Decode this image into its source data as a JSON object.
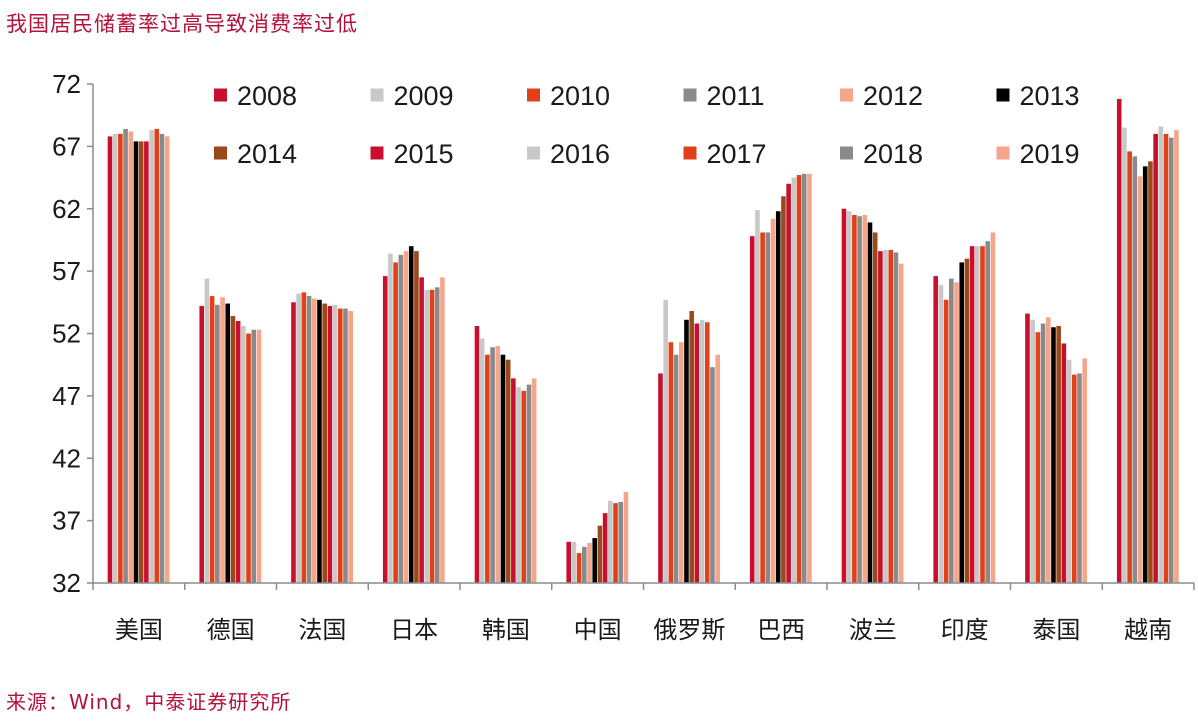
{
  "header": {
    "title": "我国居民储蓄率过高导致消费率过低"
  },
  "footer": {
    "source": "来源：Wind，中泰证券研究所"
  },
  "chart_data": {
    "type": "bar",
    "title": "",
    "xlabel": "",
    "ylabel": "",
    "ylim": [
      32,
      72
    ],
    "yticks": [
      32,
      37,
      42,
      47,
      52,
      57,
      62,
      67,
      72
    ],
    "grid": false,
    "legend_position": "top",
    "categories": [
      "美国",
      "德国",
      "法国",
      "日本",
      "韩国",
      "中国",
      "俄罗斯",
      "巴西",
      "波兰",
      "印度",
      "泰国",
      "越南"
    ],
    "series": [
      {
        "name": "2008",
        "color": "#c8102e",
        "values": [
          67.8,
          54.2,
          54.5,
          56.6,
          52.6,
          35.3,
          48.8,
          59.8,
          62.0,
          56.6,
          53.6,
          70.8
        ]
      },
      {
        "name": "2009",
        "color": "#c8c8c8",
        "values": [
          68.0,
          56.4,
          55.2,
          58.4,
          51.6,
          35.3,
          54.7,
          61.9,
          61.8,
          55.9,
          53.1,
          68.5
        ]
      },
      {
        "name": "2010",
        "color": "#e0401a",
        "values": [
          68.0,
          55.0,
          55.3,
          57.7,
          50.3,
          34.4,
          51.3,
          60.1,
          61.5,
          54.7,
          52.1,
          66.6
        ]
      },
      {
        "name": "2011",
        "color": "#8a8a8a",
        "values": [
          68.4,
          54.3,
          55.0,
          58.3,
          50.9,
          34.9,
          50.3,
          60.1,
          61.4,
          56.4,
          52.8,
          66.2
        ]
      },
      {
        "name": "2012",
        "color": "#f4a58a",
        "values": [
          68.2,
          54.9,
          54.8,
          58.6,
          51.0,
          35.2,
          51.3,
          61.2,
          61.5,
          56.1,
          53.3,
          64.6
        ]
      },
      {
        "name": "2013",
        "color": "#000000",
        "values": [
          67.4,
          54.4,
          54.7,
          59.0,
          50.3,
          35.6,
          53.1,
          61.8,
          60.9,
          57.7,
          52.5,
          65.4
        ]
      },
      {
        "name": "2014",
        "color": "#9a4a1a",
        "values": [
          67.4,
          53.4,
          54.4,
          58.6,
          49.9,
          36.6,
          53.8,
          63.0,
          60.1,
          58.0,
          52.6,
          65.8
        ]
      },
      {
        "name": "2015",
        "color": "#c8102e",
        "values": [
          67.4,
          53.0,
          54.2,
          56.5,
          48.4,
          37.6,
          52.8,
          64.0,
          58.6,
          59.0,
          51.2,
          68.0
        ]
      },
      {
        "name": "2016",
        "color": "#c8c8c8",
        "values": [
          68.3,
          52.6,
          54.3,
          55.5,
          47.7,
          38.6,
          53.1,
          64.5,
          58.7,
          59.0,
          49.9,
          68.6
        ]
      },
      {
        "name": "2017",
        "color": "#e0401a",
        "values": [
          68.4,
          52.0,
          54.0,
          55.5,
          47.4,
          38.4,
          52.9,
          64.7,
          58.7,
          59.0,
          48.7,
          68.0
        ]
      },
      {
        "name": "2018",
        "color": "#8a8a8a",
        "values": [
          68.0,
          52.3,
          54.0,
          55.7,
          47.9,
          38.5,
          49.3,
          64.8,
          58.5,
          59.4,
          48.8,
          67.7
        ]
      },
      {
        "name": "2019",
        "color": "#f4a58a",
        "values": [
          67.8,
          52.3,
          53.8,
          56.5,
          48.4,
          39.3,
          50.3,
          64.8,
          57.6,
          60.1,
          50.0,
          68.3
        ]
      }
    ]
  }
}
